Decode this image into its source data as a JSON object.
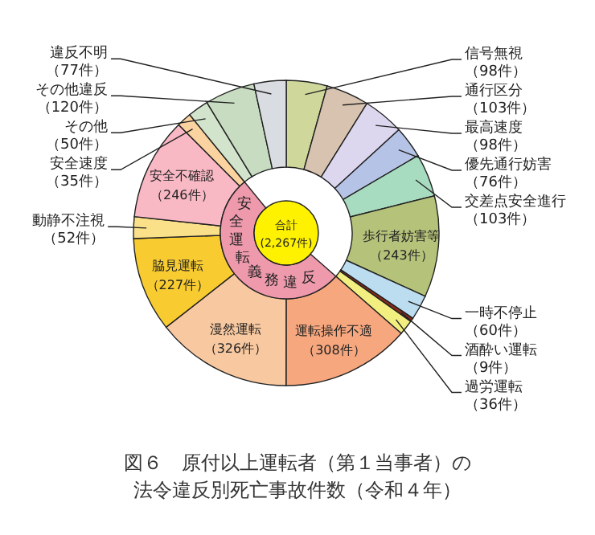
{
  "chart_data": {
    "type": "donut",
    "title": "図６　原付以上運転者（第１当事者）の法令違反別死亡事故件数（令和４年）",
    "categories": [
      "信号無視",
      "通行区分",
      "最高速度",
      "優先通行妨害",
      "交差点安全進行",
      "歩行者妨害等",
      "一時不停止",
      "酒酔い運転",
      "過労運転",
      "運転操作不適",
      "漫然運転",
      "脇見運転",
      "動静不注視",
      "安全不確認",
      "安全速度",
      "その他",
      "その他違反",
      "違反不明"
    ],
    "values": [
      98,
      103,
      98,
      76,
      103,
      243,
      60,
      9,
      36,
      308,
      326,
      227,
      52,
      246,
      35,
      50,
      120,
      77
    ],
    "value_labels": [
      "（98件）",
      "（103件）",
      "（98件）",
      "（76件）",
      "（103件）",
      "（243件）",
      "（60件）",
      "（9件）",
      "（36件）",
      "（308件）",
      "（326件）",
      "（227件）",
      "（52件）",
      "（246件）",
      "（35件）",
      "（50件）",
      "（120件）",
      "（77件）"
    ],
    "colors": [
      "#cfd89a",
      "#d7c3b0",
      "#dcd6ee",
      "#b5c3e6",
      "#a8dcc0",
      "#b5c27a",
      "#bcdcf0",
      "#8b2a1a",
      "#f2ee80",
      "#f6a77e",
      "#f8c8a0",
      "#f8cc30",
      "#fbe08a",
      "#f8b8c4",
      "#fbd3a0",
      "#d3e4cc",
      "#c7dcc0",
      "#d9dde2"
    ],
    "annotations": [
      "合計\n(2,267件)",
      "安全運転義務違反"
    ]
  }
}
